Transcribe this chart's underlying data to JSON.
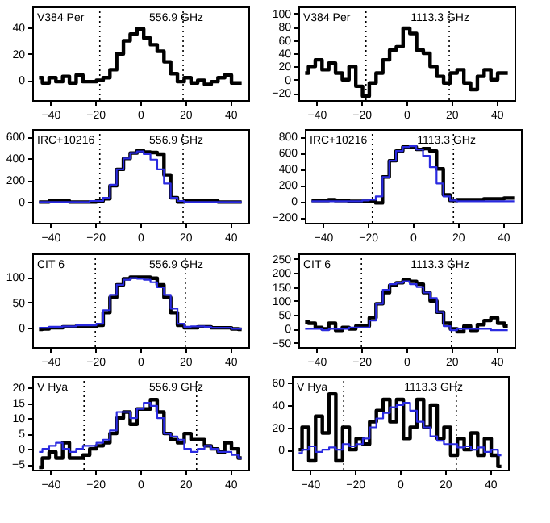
{
  "chart_data": [
    {
      "type": "step",
      "annotations": [
        "V384 Per",
        "556.9 GHz"
      ],
      "x": [
        -45,
        -42,
        -39,
        -36,
        -33,
        -30,
        -27,
        -24,
        -21,
        -18,
        -15,
        -12,
        -9,
        -6,
        -3,
        0,
        3,
        6,
        9,
        12,
        15,
        18,
        21,
        24,
        27,
        30,
        33,
        36,
        39,
        42,
        45
      ],
      "xlim": [
        -48,
        48
      ],
      "xticks": [
        -40,
        -20,
        0,
        20,
        40
      ],
      "ylim": [
        -15,
        56
      ],
      "yticks": [
        0,
        20,
        40
      ],
      "grid": false,
      "line_style": "solid",
      "series": [
        {
          "color": "#000000",
          "values": [
            2,
            -2,
            2,
            -1,
            3,
            -2,
            4,
            -1,
            -1,
            0,
            2,
            8,
            20,
            30,
            35,
            39,
            32,
            27,
            22,
            14,
            5,
            -1,
            2,
            -2,
            0,
            -3,
            -1,
            2,
            4,
            -2,
            -2
          ]
        }
      ],
      "ref_lines": [
        {
          "axis": "x",
          "value": -18,
          "color": "#000000",
          "line_style": "dotted"
        },
        {
          "axis": "x",
          "value": 19,
          "color": "#000000",
          "line_style": "dotted"
        }
      ]
    },
    {
      "type": "step",
      "annotations": [
        "V384 Per",
        "1113.3 GHz"
      ],
      "x": [
        -45,
        -42,
        -39,
        -36,
        -33,
        -30,
        -27,
        -24,
        -21,
        -18,
        -15,
        -12,
        -9,
        -6,
        -3,
        0,
        3,
        6,
        9,
        12,
        15,
        18,
        21,
        24,
        27,
        30,
        33,
        36,
        39,
        42,
        45
      ],
      "xlim": [
        -48,
        48
      ],
      "xticks": [
        -40,
        -20,
        0,
        20,
        40
      ],
      "ylim": [
        -31,
        111
      ],
      "yticks": [
        -20,
        0,
        20,
        40,
        60,
        80,
        100
      ],
      "grid": false,
      "line_style": "solid",
      "series": [
        {
          "color": "#000000",
          "values": [
            10,
            20,
            30,
            15,
            25,
            10,
            0,
            20,
            -10,
            -25,
            -5,
            10,
            30,
            45,
            50,
            78,
            70,
            45,
            40,
            20,
            5,
            -5,
            10,
            15,
            -5,
            -15,
            5,
            15,
            0,
            10,
            10
          ]
        }
      ],
      "ref_lines": [
        {
          "axis": "x",
          "value": -18,
          "color": "#000000",
          "line_style": "dotted"
        },
        {
          "axis": "x",
          "value": 19,
          "color": "#000000",
          "line_style": "dotted"
        }
      ]
    },
    {
      "type": "step",
      "annotations": [
        "IRC+10216",
        "556.9 GHz"
      ],
      "x": [
        -45,
        -42,
        -39,
        -36,
        -33,
        -30,
        -27,
        -24,
        -21,
        -18,
        -15,
        -12,
        -9,
        -6,
        -3,
        0,
        3,
        6,
        9,
        12,
        15,
        18,
        21,
        24,
        27,
        30,
        33,
        36,
        39,
        42,
        45
      ],
      "xlim": [
        -48,
        48
      ],
      "xticks": [
        -40,
        -20,
        0,
        20,
        40
      ],
      "ylim": [
        -190,
        670
      ],
      "yticks": [
        0,
        200,
        400,
        600
      ],
      "grid": false,
      "line_style": "solid",
      "series": [
        {
          "color": "#000000",
          "values": [
            0,
            0,
            10,
            10,
            10,
            0,
            0,
            0,
            0,
            10,
            30,
            150,
            300,
            400,
            450,
            470,
            460,
            455,
            440,
            250,
            40,
            0,
            10,
            10,
            10,
            10,
            10,
            0,
            0,
            0,
            0
          ]
        },
        {
          "color": "#2a2ae0",
          "values": [
            0,
            0,
            0,
            0,
            0,
            0,
            0,
            0,
            10,
            10,
            40,
            160,
            300,
            400,
            450,
            465,
            440,
            390,
            300,
            170,
            40,
            10,
            0,
            0,
            0,
            0,
            0,
            0,
            0,
            0,
            0
          ]
        }
      ],
      "ref_lines": [
        {
          "axis": "x",
          "value": -18,
          "color": "#000000",
          "line_style": "dotted"
        },
        {
          "axis": "x",
          "value": 19,
          "color": "#000000",
          "line_style": "dotted"
        }
      ]
    },
    {
      "type": "step",
      "annotations": [
        "IRC+10216",
        "1113.3 GHz"
      ],
      "x": [
        -45,
        -42,
        -39,
        -36,
        -33,
        -30,
        -27,
        -24,
        -21,
        -18,
        -15,
        -12,
        -9,
        -6,
        -3,
        0,
        3,
        6,
        9,
        12,
        15,
        18,
        21,
        24,
        27,
        30,
        33,
        36,
        39,
        42,
        45
      ],
      "xlim": [
        -48,
        48
      ],
      "xticks": [
        -40,
        -20,
        0,
        20,
        40
      ],
      "ylim": [
        -265,
        890
      ],
      "yticks": [
        -200,
        0,
        200,
        400,
        600,
        800
      ],
      "grid": false,
      "line_style": "solid",
      "series": [
        {
          "color": "#000000",
          "values": [
            10,
            10,
            10,
            20,
            10,
            10,
            0,
            0,
            0,
            0,
            -20,
            300,
            500,
            620,
            670,
            670,
            640,
            650,
            620,
            400,
            80,
            10,
            20,
            20,
            20,
            20,
            30,
            30,
            30,
            40,
            40
          ]
        },
        {
          "color": "#2a2ae0",
          "values": [
            0,
            0,
            0,
            0,
            0,
            0,
            0,
            0,
            10,
            20,
            60,
            300,
            500,
            620,
            670,
            680,
            640,
            560,
            420,
            220,
            60,
            10,
            0,
            0,
            0,
            0,
            0,
            0,
            0,
            0,
            0
          ]
        }
      ],
      "ref_lines": [
        {
          "axis": "x",
          "value": -18,
          "color": "#000000",
          "line_style": "dotted"
        },
        {
          "axis": "x",
          "value": 18,
          "color": "#000000",
          "line_style": "dotted"
        }
      ]
    },
    {
      "type": "step",
      "annotations": [
        "CIT 6",
        "556.9 GHz"
      ],
      "x": [
        -45,
        -42,
        -39,
        -36,
        -33,
        -30,
        -27,
        -24,
        -21,
        -18,
        -15,
        -12,
        -9,
        -6,
        -3,
        0,
        3,
        6,
        9,
        12,
        15,
        18,
        21,
        24,
        27,
        30,
        33,
        36,
        39,
        42,
        45
      ],
      "xlim": [
        -48,
        48
      ],
      "xticks": [
        -40,
        -20,
        0,
        20,
        40
      ],
      "ylim": [
        -38,
        147
      ],
      "yticks": [
        0,
        50,
        100
      ],
      "grid": false,
      "line_style": "solid",
      "series": [
        {
          "color": "#000000",
          "values": [
            -3,
            -2,
            0,
            0,
            2,
            2,
            3,
            3,
            3,
            5,
            30,
            60,
            85,
            97,
            100,
            100,
            100,
            98,
            85,
            60,
            30,
            5,
            0,
            0,
            2,
            2,
            0,
            0,
            0,
            -2,
            -3
          ]
        },
        {
          "color": "#2a2ae0",
          "values": [
            0,
            0,
            2,
            2,
            3,
            3,
            5,
            5,
            5,
            8,
            35,
            65,
            85,
            95,
            98,
            97,
            95,
            90,
            80,
            65,
            38,
            8,
            2,
            3,
            3,
            2,
            0,
            0,
            0,
            -2,
            -2
          ]
        }
      ],
      "ref_lines": [
        {
          "axis": "x",
          "value": -20,
          "color": "#000000",
          "line_style": "dotted"
        },
        {
          "axis": "x",
          "value": 20,
          "color": "#000000",
          "line_style": "dotted"
        }
      ]
    },
    {
      "type": "step",
      "annotations": [
        "CIT 6",
        "1113.3 GHz"
      ],
      "x": [
        -45,
        -42,
        -39,
        -36,
        -33,
        -30,
        -27,
        -24,
        -21,
        -18,
        -15,
        -12,
        -9,
        -6,
        -3,
        0,
        3,
        6,
        9,
        12,
        15,
        18,
        21,
        24,
        27,
        30,
        33,
        36,
        39,
        42,
        45
      ],
      "xlim": [
        -48,
        48
      ],
      "xticks": [
        -40,
        -20,
        0,
        20,
        40
      ],
      "ylim": [
        -65,
        270
      ],
      "yticks": [
        -50,
        0,
        50,
        100,
        150,
        200,
        250
      ],
      "grid": false,
      "line_style": "solid",
      "series": [
        {
          "color": "#000000",
          "values": [
            25,
            20,
            5,
            0,
            20,
            -5,
            5,
            0,
            10,
            10,
            40,
            90,
            130,
            155,
            165,
            175,
            170,
            160,
            130,
            100,
            60,
            20,
            0,
            -10,
            10,
            -5,
            15,
            30,
            40,
            20,
            10
          ]
        },
        {
          "color": "#2a2ae0",
          "values": [
            0,
            0,
            0,
            -5,
            0,
            0,
            0,
            5,
            5,
            5,
            30,
            90,
            140,
            160,
            165,
            170,
            160,
            150,
            130,
            110,
            60,
            10,
            -5,
            0,
            0,
            0,
            0,
            0,
            -5,
            -5,
            -5
          ]
        }
      ],
      "ref_lines": [
        {
          "axis": "x",
          "value": -20,
          "color": "#000000",
          "line_style": "dotted"
        },
        {
          "axis": "x",
          "value": 20,
          "color": "#000000",
          "line_style": "dotted"
        }
      ]
    },
    {
      "type": "step",
      "annotations": [
        "V Hya",
        "556.9 GHz"
      ],
      "x": [
        -45,
        -42,
        -39,
        -36,
        -33,
        -30,
        -27,
        -24,
        -21,
        -18,
        -15,
        -12,
        -9,
        -6,
        -3,
        0,
        3,
        6,
        9,
        12,
        15,
        18,
        21,
        24,
        27,
        30,
        33,
        36,
        39,
        42,
        45
      ],
      "xlim": [
        -48,
        48
      ],
      "xticks": [
        -40,
        -20,
        0,
        20,
        40
      ],
      "ylim": [
        -6.8,
        23.7
      ],
      "yticks": [
        -5,
        0,
        5,
        10,
        15,
        20
      ],
      "grid": false,
      "line_style": "solid",
      "series": [
        {
          "color": "#000000",
          "values": [
            -6,
            -3,
            -1,
            -3,
            2,
            -3,
            -3,
            -2,
            0,
            1,
            2,
            5,
            10,
            12,
            8,
            13,
            13,
            16,
            12,
            5,
            3,
            2,
            5,
            3,
            3,
            1,
            0,
            -1,
            2,
            0,
            -3
          ]
        },
        {
          "color": "#2a2ae0",
          "values": [
            -1,
            0,
            1,
            2,
            0,
            -1,
            0,
            1,
            1,
            2,
            3,
            6,
            12,
            12,
            10,
            13,
            15,
            14,
            10,
            5,
            4,
            3,
            0,
            -1,
            0,
            1,
            0,
            -1,
            -1,
            -2,
            -3
          ]
        }
      ],
      "ref_lines": [
        {
          "axis": "x",
          "value": -25,
          "color": "#000000",
          "line_style": "dotted"
        },
        {
          "axis": "x",
          "value": 25,
          "color": "#000000",
          "line_style": "dotted"
        }
      ]
    },
    {
      "type": "step",
      "annotations": [
        "V Hya",
        "1113.3 GHz"
      ],
      "x": [
        -45,
        -42,
        -39,
        -36,
        -33,
        -30,
        -27,
        -24,
        -21,
        -18,
        -15,
        -12,
        -9,
        -6,
        -3,
        0,
        3,
        6,
        9,
        12,
        15,
        18,
        21,
        24,
        27,
        30,
        33,
        36,
        39,
        42,
        45
      ],
      "xlim": [
        -48,
        48
      ],
      "xticks": [
        -40,
        -20,
        0,
        20,
        40
      ],
      "ylim": [
        -18,
        66
      ],
      "yticks": [
        0,
        20,
        40,
        60
      ],
      "grid": false,
      "line_style": "solid",
      "series": [
        {
          "color": "#000000",
          "values": [
            0,
            20,
            -10,
            30,
            15,
            50,
            -10,
            20,
            0,
            10,
            5,
            25,
            35,
            45,
            25,
            45,
            10,
            20,
            45,
            20,
            40,
            10,
            20,
            -5,
            10,
            0,
            15,
            -5,
            10,
            -5,
            -15
          ]
        },
        {
          "color": "#2a2ae0",
          "values": [
            -3,
            0,
            3,
            -2,
            0,
            2,
            0,
            5,
            3,
            5,
            10,
            20,
            28,
            33,
            38,
            40,
            42,
            35,
            25,
            20,
            12,
            8,
            5,
            5,
            2,
            3,
            0,
            2,
            -2,
            0,
            -5
          ]
        }
      ],
      "ref_lines": [
        {
          "axis": "x",
          "value": -25,
          "color": "#000000",
          "line_style": "dotted"
        },
        {
          "axis": "x",
          "value": 25,
          "color": "#000000",
          "line_style": "dotted"
        }
      ]
    }
  ]
}
